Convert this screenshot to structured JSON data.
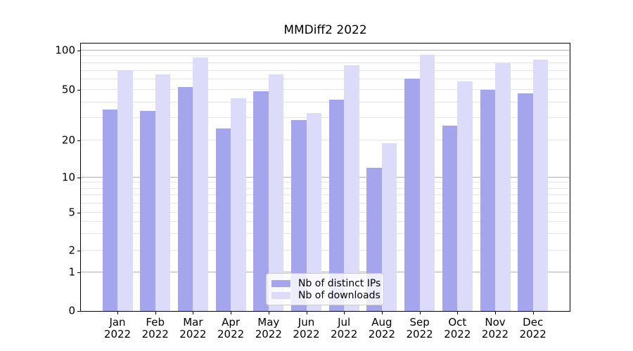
{
  "title": "MMDiff2 2022",
  "chart_data": {
    "type": "bar",
    "title": "MMDiff2 2022",
    "categories": [
      "Jan",
      "Feb",
      "Mar",
      "Apr",
      "May",
      "Jun",
      "Jul",
      "Aug",
      "Sep",
      "Oct",
      "Nov",
      "Dec"
    ],
    "year": "2022",
    "series": [
      {
        "name": "Nb of distinct IPs",
        "color": "#a5a5ee",
        "values": [
          35,
          34,
          53,
          25,
          49,
          29,
          42,
          12,
          61,
          26,
          50,
          47
        ]
      },
      {
        "name": "Nb of downloads",
        "color": "#dcdcfa",
        "values": [
          71,
          66,
          88,
          43,
          66,
          33,
          77,
          19,
          93,
          58,
          80,
          85
        ]
      }
    ],
    "yscale": "log-like (0 baseline, log above 1)",
    "ytick_values": [
      100,
      50,
      20,
      10,
      5,
      2,
      1,
      0
    ],
    "ytick_labels": [
      "100",
      "50",
      "20",
      "10",
      "5",
      "2",
      "1",
      "0"
    ],
    "ylim": [
      0,
      115
    ],
    "grid": "both",
    "legend_position": "lower center"
  },
  "colors": {
    "bar_dark": "#a5a5ee",
    "bar_light": "#dcdcfa",
    "grid_major": "#b0b0b0",
    "grid_minor": "#e4e4e4",
    "spine": "#000000",
    "legend_border": "#cccccc",
    "text": "#000000"
  }
}
